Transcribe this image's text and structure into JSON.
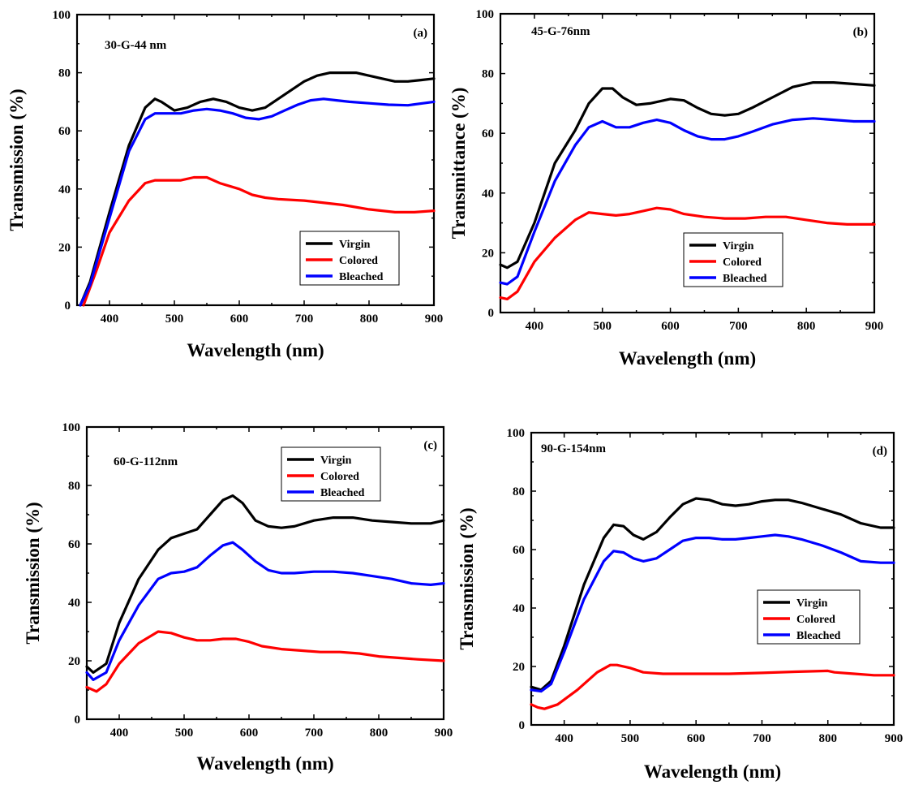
{
  "chart_data": [
    {
      "type": "line",
      "panel_label": "(a)",
      "sample_label": "30-G-44 nm",
      "xlabel": "Wavelength (nm)",
      "ylabel": "Transmission (%)",
      "xlim": [
        350,
        900
      ],
      "ylim": [
        0,
        100
      ],
      "xticks": [
        400,
        500,
        600,
        700,
        800,
        900
      ],
      "yticks": [
        0,
        20,
        40,
        60,
        80,
        100
      ],
      "legend_position": "bottom-right",
      "series": [
        {
          "name": "Virgin",
          "color": "#000000",
          "x": [
            355,
            370,
            400,
            430,
            455,
            470,
            480,
            500,
            520,
            540,
            560,
            580,
            600,
            620,
            640,
            660,
            680,
            700,
            720,
            740,
            760,
            780,
            800,
            820,
            840,
            860,
            880,
            900
          ],
          "y": [
            0,
            8,
            32,
            55,
            68,
            71,
            70,
            67,
            68,
            70,
            71,
            70,
            68,
            67,
            68,
            71,
            74,
            77,
            79,
            80,
            80,
            80,
            79,
            78,
            77,
            77,
            77.5,
            78
          ]
        },
        {
          "name": "Colored",
          "color": "#ff0000",
          "x": [
            360,
            380,
            400,
            430,
            455,
            470,
            490,
            510,
            530,
            550,
            570,
            600,
            620,
            640,
            660,
            700,
            720,
            760,
            800,
            840,
            870,
            900
          ],
          "y": [
            0,
            12,
            25,
            36,
            42,
            43,
            43,
            43,
            44,
            44,
            42,
            40,
            38,
            37,
            36.5,
            36,
            35.5,
            34.5,
            33,
            32,
            32,
            32.5
          ]
        },
        {
          "name": "Bleached",
          "color": "#0000ff",
          "x": [
            355,
            370,
            400,
            430,
            455,
            470,
            490,
            510,
            530,
            550,
            570,
            590,
            610,
            630,
            650,
            670,
            690,
            710,
            730,
            750,
            770,
            800,
            830,
            860,
            900
          ],
          "y": [
            0,
            7,
            30,
            53,
            64,
            66,
            66,
            66,
            67,
            67.5,
            67,
            66,
            64.5,
            64,
            65,
            67,
            69,
            70.5,
            71,
            70.5,
            70,
            69.5,
            69,
            68.8,
            70
          ]
        }
      ]
    },
    {
      "type": "line",
      "panel_label": "(b)",
      "sample_label": "45-G-76nm",
      "xlabel": "Wavelength (nm)",
      "ylabel": "Transmittance (%)",
      "xlim": [
        350,
        900
      ],
      "ylim": [
        0,
        100
      ],
      "xticks": [
        400,
        500,
        600,
        700,
        800,
        900
      ],
      "yticks": [
        0,
        20,
        40,
        60,
        80,
        100
      ],
      "legend_position": "bottom-right",
      "series": [
        {
          "name": "Virgin",
          "color": "#000000",
          "x": [
            350,
            360,
            375,
            400,
            430,
            460,
            480,
            500,
            515,
            530,
            550,
            570,
            600,
            620,
            640,
            660,
            680,
            700,
            720,
            750,
            780,
            810,
            840,
            870,
            900
          ],
          "y": [
            16,
            15,
            17,
            30,
            50,
            61,
            70,
            75,
            75,
            72,
            69.5,
            70,
            71.5,
            71,
            68.5,
            66.5,
            66,
            66.5,
            68.5,
            72,
            75.5,
            77,
            77,
            76.5,
            76
          ]
        },
        {
          "name": "Colored",
          "color": "#ff0000",
          "x": [
            350,
            360,
            375,
            400,
            430,
            460,
            480,
            500,
            520,
            540,
            560,
            580,
            600,
            620,
            650,
            680,
            710,
            740,
            770,
            800,
            830,
            860,
            900
          ],
          "y": [
            5,
            4.5,
            7,
            17,
            25,
            31,
            33.5,
            33,
            32.5,
            33,
            34,
            35,
            34.5,
            33,
            32,
            31.5,
            31.5,
            32,
            32,
            31,
            30,
            29.5,
            29.5
          ]
        },
        {
          "name": "Bleached",
          "color": "#0000ff",
          "x": [
            350,
            360,
            375,
            400,
            430,
            460,
            480,
            500,
            520,
            540,
            560,
            580,
            600,
            620,
            640,
            660,
            680,
            700,
            720,
            750,
            780,
            810,
            840,
            870,
            900
          ],
          "y": [
            10,
            9.5,
            12,
            27,
            44,
            56,
            62,
            64,
            62,
            62,
            63.5,
            64.5,
            63.5,
            61,
            59,
            58,
            58,
            59,
            60.5,
            63,
            64.5,
            65,
            64.5,
            64,
            64
          ]
        }
      ]
    },
    {
      "type": "line",
      "panel_label": "(c)",
      "sample_label": "60-G-112nm",
      "xlabel": "Wavelength (nm)",
      "ylabel": "Transmission (%)",
      "xlim": [
        350,
        900
      ],
      "ylim": [
        0,
        100
      ],
      "xticks": [
        400,
        500,
        600,
        700,
        800,
        900
      ],
      "yticks": [
        0,
        20,
        40,
        60,
        80,
        100
      ],
      "legend_position": "top-center",
      "series": [
        {
          "name": "Virgin",
          "color": "#000000",
          "x": [
            350,
            360,
            380,
            400,
            430,
            460,
            480,
            500,
            520,
            540,
            560,
            575,
            590,
            610,
            630,
            650,
            670,
            700,
            730,
            760,
            790,
            820,
            850,
            880,
            900
          ],
          "y": [
            18,
            16,
            19,
            33,
            48,
            58,
            62,
            63.5,
            65,
            70,
            75,
            76.5,
            74,
            68,
            66,
            65.5,
            66,
            68,
            69,
            69,
            68,
            67.5,
            67,
            67,
            68
          ]
        },
        {
          "name": "Colored",
          "color": "#ff0000",
          "x": [
            350,
            365,
            380,
            400,
            430,
            460,
            480,
            500,
            520,
            540,
            560,
            580,
            600,
            620,
            650,
            680,
            710,
            740,
            770,
            800,
            830,
            860,
            900
          ],
          "y": [
            11,
            9.5,
            12,
            19,
            26,
            30,
            29.5,
            28,
            27,
            27,
            27.5,
            27.5,
            26.5,
            25,
            24,
            23.5,
            23,
            23,
            22.5,
            21.5,
            21,
            20.5,
            20
          ]
        },
        {
          "name": "Bleached",
          "color": "#0000ff",
          "x": [
            350,
            360,
            380,
            400,
            430,
            460,
            480,
            500,
            520,
            540,
            560,
            575,
            590,
            610,
            630,
            650,
            670,
            700,
            730,
            760,
            790,
            820,
            850,
            880,
            900
          ],
          "y": [
            16,
            13.5,
            16,
            27,
            39,
            48,
            50,
            50.5,
            52,
            56,
            59.5,
            60.5,
            58,
            54,
            51,
            50,
            50,
            50.5,
            50.5,
            50,
            49,
            48,
            46.5,
            46,
            46.5
          ]
        }
      ]
    },
    {
      "type": "line",
      "panel_label": "(d)",
      "sample_label": "90-G-154nm",
      "xlabel": "Wavelength (nm)",
      "ylabel": "Transmission (%)",
      "xlim": [
        350,
        900
      ],
      "ylim": [
        0,
        100
      ],
      "xticks": [
        400,
        500,
        600,
        700,
        800,
        900
      ],
      "yticks": [
        0,
        20,
        40,
        60,
        80,
        100
      ],
      "legend_position": "center-right",
      "series": [
        {
          "name": "Virgin",
          "color": "#000000",
          "x": [
            350,
            365,
            380,
            400,
            430,
            460,
            475,
            490,
            505,
            520,
            540,
            560,
            580,
            600,
            620,
            640,
            660,
            680,
            700,
            720,
            740,
            760,
            790,
            820,
            850,
            880,
            900
          ],
          "y": [
            13,
            12,
            15,
            27,
            48,
            64,
            68.5,
            68,
            65,
            63.5,
            66,
            71,
            75.5,
            77.5,
            77,
            75.5,
            75,
            75.5,
            76.5,
            77,
            77,
            76,
            74,
            72,
            69,
            67.5,
            67.5
          ]
        },
        {
          "name": "Colored",
          "color": "#ff0000",
          "x": [
            350,
            360,
            370,
            390,
            420,
            450,
            470,
            480,
            500,
            520,
            550,
            600,
            650,
            700,
            750,
            800,
            810,
            840,
            870,
            900
          ],
          "y": [
            7,
            6,
            5.5,
            7,
            12,
            18,
            20.5,
            20.5,
            19.5,
            18,
            17.5,
            17.5,
            17.5,
            17.8,
            18.2,
            18.5,
            18,
            17.5,
            17,
            17
          ]
        },
        {
          "name": "Bleached",
          "color": "#0000ff",
          "x": [
            350,
            365,
            380,
            400,
            430,
            460,
            475,
            490,
            505,
            520,
            540,
            560,
            580,
            600,
            620,
            640,
            660,
            680,
            700,
            720,
            740,
            760,
            790,
            820,
            850,
            880,
            900
          ],
          "y": [
            12,
            11.5,
            14,
            25,
            43,
            56,
            59.5,
            59,
            57,
            56,
            57,
            60,
            63,
            64,
            64,
            63.5,
            63.5,
            64,
            64.5,
            65,
            64.5,
            63.5,
            61.5,
            59,
            56,
            55.5,
            55.5
          ]
        }
      ]
    }
  ]
}
